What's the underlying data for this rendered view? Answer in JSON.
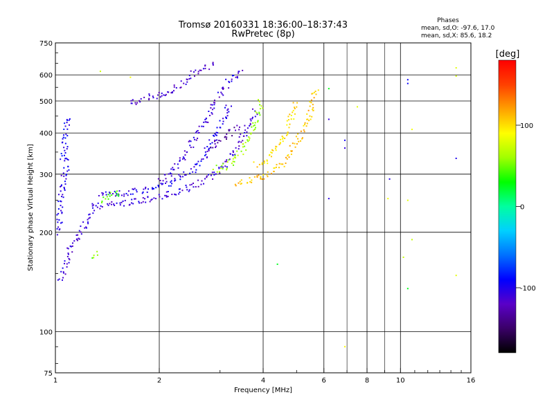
{
  "chart_data": {
    "type": "scatter",
    "title": "Tromsø 20160331 18:36:00–18:37:43",
    "subtitle": "RwPretec (8p)",
    "xlabel": "Frequency [MHz]",
    "ylabel": "Stationary phase Virtual Height [km]",
    "x_scale": "log",
    "y_scale": "log",
    "xlim": [
      1,
      16
    ],
    "ylim": [
      75,
      750
    ],
    "x_ticks": [
      1,
      2,
      4,
      6,
      8,
      10,
      16
    ],
    "x_tick_labels": [
      "1",
      "2",
      "4",
      "6",
      "8",
      "10",
      "16"
    ],
    "y_ticks": [
      75,
      100,
      200,
      300,
      400,
      500,
      600,
      750
    ],
    "y_tick_labels": [
      "75",
      "100",
      "200",
      "300",
      "400",
      "500",
      "600",
      "750"
    ],
    "grid": true,
    "info": {
      "heading": "Phases",
      "line1": "mean, sd,O: -97.6, 17.0",
      "line2": "mean, sd,X:  85.6, 18.2"
    },
    "colorbar": {
      "label": "[deg]",
      "range": [
        -180,
        180
      ],
      "ticks": [
        100,
        0,
        -100
      ],
      "tick_labels": [
        "100",
        "0",
        "-100"
      ],
      "colors": [
        "#000000",
        "#3a0068",
        "#5a00c8",
        "#0000ff",
        "#0070ff",
        "#00d0ff",
        "#00ffa0",
        "#00ff00",
        "#a0ff00",
        "#ffff00",
        "#ffa000",
        "#ff4000",
        "#ff0000"
      ]
    },
    "series": [
      {
        "mode": "O",
        "phase": -97.6,
        "traces": [
          {
            "phase": -110,
            "points": [
              [
                1.02,
                143
              ],
              [
                1.05,
                150
              ],
              [
                1.08,
                165
              ],
              [
                1.12,
                185
              ],
              [
                1.18,
                200
              ],
              [
                1.25,
                218
              ],
              [
                1.3,
                240
              ],
              [
                1.5,
                243
              ],
              [
                1.8,
                250
              ],
              [
                2.0,
                256
              ],
              [
                2.3,
                265
              ],
              [
                2.6,
                280
              ],
              [
                2.9,
                300
              ],
              [
                3.2,
                335
              ],
              [
                3.5,
                390
              ],
              [
                3.8,
                470
              ]
            ]
          },
          {
            "phase": -105,
            "points": [
              [
                1.02,
                200
              ],
              [
                1.03,
                240
              ],
              [
                1.05,
                280
              ],
              [
                1.08,
                320
              ],
              [
                1.1,
                330
              ]
            ]
          },
          {
            "phase": -100,
            "points": [
              [
                1.35,
                262
              ],
              [
                1.6,
                262
              ],
              [
                1.9,
                270
              ],
              [
                2.2,
                285
              ],
              [
                2.5,
                310
              ],
              [
                2.7,
                340
              ],
              [
                2.9,
                390
              ],
              [
                3.1,
                450
              ],
              [
                3.2,
                490
              ]
            ]
          },
          {
            "phase": -110,
            "points": [
              [
                2.0,
                285
              ],
              [
                2.2,
                310
              ],
              [
                2.4,
                350
              ],
              [
                2.6,
                400
              ],
              [
                2.8,
                460
              ],
              [
                3.0,
                520
              ],
              [
                3.2,
                580
              ],
              [
                3.5,
                620
              ]
            ]
          },
          {
            "phase": -115,
            "points": [
              [
                1.65,
                490
              ],
              [
                1.8,
                510
              ],
              [
                2.0,
                520
              ],
              [
                2.2,
                540
              ],
              [
                2.3,
                560
              ],
              [
                2.5,
                600
              ],
              [
                2.7,
                630
              ],
              [
                2.9,
                645
              ]
            ]
          },
          {
            "phase": -130,
            "points": [
              [
                2.8,
                350
              ],
              [
                3.0,
                380
              ],
              [
                3.2,
                400
              ],
              [
                3.4,
                420
              ]
            ]
          },
          {
            "phase": -95,
            "points": [
              [
                1.05,
                330
              ],
              [
                1.07,
                390
              ],
              [
                1.09,
                450
              ]
            ]
          }
        ]
      },
      {
        "mode": "X",
        "phase": 85.6,
        "traces": [
          {
            "phase": 110,
            "points": [
              [
                3.3,
                282
              ],
              [
                3.6,
                285
              ],
              [
                3.9,
                292
              ],
              [
                4.2,
                300
              ],
              [
                4.5,
                320
              ],
              [
                4.8,
                350
              ],
              [
                5.1,
                390
              ],
              [
                5.4,
                440
              ],
              [
                5.6,
                500
              ],
              [
                5.7,
                550
              ]
            ]
          },
          {
            "phase": 100,
            "points": [
              [
                3.8,
                320
              ],
              [
                4.1,
                330
              ],
              [
                4.4,
                360
              ],
              [
                4.7,
                410
              ],
              [
                4.9,
                470
              ],
              [
                5.0,
                500
              ]
            ]
          },
          {
            "phase": 60,
            "points": [
              [
                2.9,
                310
              ],
              [
                3.1,
                315
              ],
              [
                3.3,
                330
              ],
              [
                3.5,
                360
              ],
              [
                3.7,
                400
              ],
              [
                3.85,
                450
              ],
              [
                3.95,
                500
              ]
            ]
          },
          {
            "phase": 40,
            "points": [
              [
                1.35,
                250
              ],
              [
                1.45,
                260
              ],
              [
                1.55,
                265
              ]
            ]
          },
          {
            "phase": 50,
            "points": [
              [
                1.3,
                170
              ],
              [
                1.35,
                175
              ]
            ]
          }
        ]
      },
      {
        "mode": "scattered",
        "traces": [
          {
            "phase": -100,
            "points": [
              [
                6.2,
                253
              ],
              [
                6.9,
                360
              ],
              [
                6.2,
                440
              ],
              [
                9.3,
                290
              ],
              [
                10.5,
                580
              ],
              [
                10.5,
                565
              ],
              [
                14.5,
                335
              ],
              [
                6.9,
                380
              ]
            ]
          },
          {
            "phase": 80,
            "points": [
              [
                1.35,
                615
              ],
              [
                1.65,
                590
              ],
              [
                6.9,
                90
              ],
              [
                7.5,
                480
              ],
              [
                9.2,
                253
              ],
              [
                10.5,
                250
              ],
              [
                10.8,
                190
              ],
              [
                10.2,
                168
              ],
              [
                14.5,
                148
              ],
              [
                14.5,
                630
              ],
              [
                14.5,
                595
              ],
              [
                10.8,
                410
              ]
            ]
          },
          {
            "phase": 20,
            "points": [
              [
                10.5,
                135
              ],
              [
                4.4,
                160
              ],
              [
                6.2,
                545
              ]
            ]
          }
        ]
      }
    ]
  }
}
